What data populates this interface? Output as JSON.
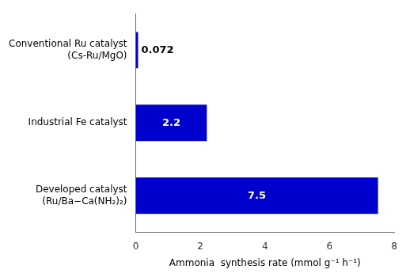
{
  "chart_data": {
    "type": "bar",
    "orientation": "horizontal",
    "categories": [
      "Conventional Ru catalyst\n(Cs-Ru/MgO)",
      "Industrial Fe catalyst",
      "Developed catalyst\n(Ru/Ba−Ca(NH₂)₂)"
    ],
    "values": [
      0.072,
      2.2,
      7.5
    ],
    "color": "#0000cc",
    "xlabel": "Ammonia  synthesis rate (mmol g⁻¹ h⁻¹)",
    "xlim": [
      0,
      8
    ],
    "xticks": [
      0,
      2,
      4,
      6,
      8
    ],
    "grid": false,
    "data_labels": true
  }
}
